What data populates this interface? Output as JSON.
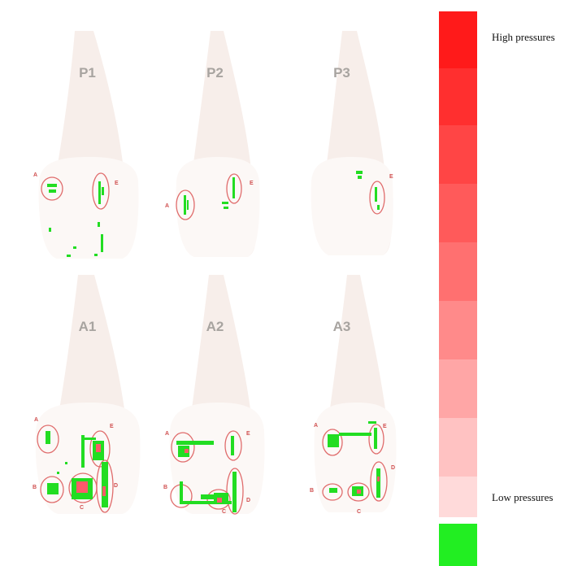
{
  "panels": [
    {
      "label": "P1",
      "markers": [
        "A",
        "E"
      ]
    },
    {
      "label": "P2",
      "markers": [
        "A",
        "E"
      ]
    },
    {
      "label": "P3",
      "markers": [
        "E"
      ]
    },
    {
      "label": "A1",
      "markers": [
        "A",
        "E",
        "B",
        "C",
        "D"
      ]
    },
    {
      "label": "A2",
      "markers": [
        "A",
        "E",
        "B",
        "C",
        "D"
      ]
    },
    {
      "label": "A3",
      "markers": [
        "A",
        "E",
        "B",
        "C",
        "D"
      ]
    }
  ],
  "legend": {
    "high_label": "High pressures",
    "low_label": "Low pressures",
    "colors": [
      "#ff1a1a",
      "#ff2f2f",
      "#ff4545",
      "#ff5a5a",
      "#ff7070",
      "#ff8a8a",
      "#ffa6a6",
      "#ffc2c2",
      "#ffdada",
      "#ffffff",
      "#22ee22"
    ]
  },
  "colors": {
    "tooth_fill": "#f7eeea",
    "tooth_crown": "#fcf8f6",
    "circle_stroke": "#e06c6c",
    "contact_green": "#22dd22",
    "contact_red": "#ff5a6a"
  }
}
